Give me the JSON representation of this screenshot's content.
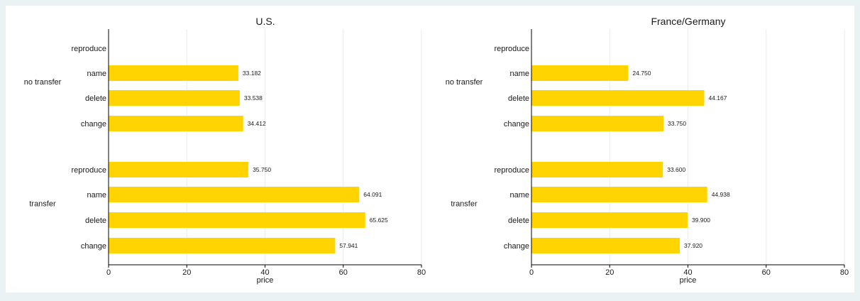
{
  "chart_data": [
    {
      "type": "bar",
      "orientation": "horizontal",
      "title": "U.S.",
      "xlabel": "price",
      "xlim": [
        0,
        80
      ],
      "xticks": [
        0,
        20,
        40,
        60,
        80
      ],
      "grid": true,
      "bar_color": "#ffd400",
      "groups": [
        {
          "label": "no transfer",
          "bars": [
            {
              "label": "reproduce",
              "value": null,
              "value_label": ""
            },
            {
              "label": "name",
              "value": 33.182,
              "value_label": "33.182"
            },
            {
              "label": "delete",
              "value": 33.538,
              "value_label": "33.538"
            },
            {
              "label": "change",
              "value": 34.412,
              "value_label": "34.412"
            }
          ]
        },
        {
          "label": "transfer",
          "bars": [
            {
              "label": "reproduce",
              "value": 35.75,
              "value_label": "35.750"
            },
            {
              "label": "name",
              "value": 64.091,
              "value_label": "64.091"
            },
            {
              "label": "delete",
              "value": 65.625,
              "value_label": "65.625"
            },
            {
              "label": "change",
              "value": 57.941,
              "value_label": "57.941"
            }
          ]
        }
      ]
    },
    {
      "type": "bar",
      "orientation": "horizontal",
      "title": "France/Germany",
      "xlabel": "price",
      "xlim": [
        0,
        80
      ],
      "xticks": [
        0,
        20,
        40,
        60,
        80
      ],
      "grid": true,
      "bar_color": "#ffd400",
      "groups": [
        {
          "label": "no transfer",
          "bars": [
            {
              "label": "reproduce",
              "value": null,
              "value_label": ""
            },
            {
              "label": "name",
              "value": 24.75,
              "value_label": "24.750"
            },
            {
              "label": "delete",
              "value": 44.167,
              "value_label": "44.167"
            },
            {
              "label": "change",
              "value": 33.75,
              "value_label": "33.750"
            }
          ]
        },
        {
          "label": "transfer",
          "bars": [
            {
              "label": "reproduce",
              "value": 33.6,
              "value_label": "33.600"
            },
            {
              "label": "name",
              "value": 44.938,
              "value_label": "44.938"
            },
            {
              "label": "delete",
              "value": 39.9,
              "value_label": "39.900"
            },
            {
              "label": "change",
              "value": 37.92,
              "value_label": "37.920"
            }
          ]
        }
      ]
    }
  ],
  "colors": {
    "figure_background": "#eaf2f3",
    "plot_background": "#ffffff",
    "bar": "#ffd400",
    "gridline": "#e6eef0"
  }
}
